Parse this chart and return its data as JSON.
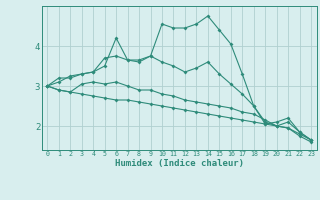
{
  "x": [
    0,
    1,
    2,
    3,
    4,
    5,
    6,
    7,
    8,
    9,
    10,
    11,
    12,
    13,
    14,
    15,
    16,
    17,
    18,
    19,
    20,
    21,
    22,
    23
  ],
  "line1": [
    3.0,
    3.2,
    3.2,
    3.3,
    3.35,
    3.7,
    3.75,
    3.65,
    3.65,
    3.75,
    4.55,
    4.45,
    4.45,
    4.55,
    4.75,
    4.4,
    4.05,
    3.3,
    2.5,
    2.05,
    2.1,
    2.2,
    1.85,
    1.65
  ],
  "line2": [
    3.0,
    3.1,
    3.25,
    3.3,
    3.35,
    3.5,
    4.2,
    3.65,
    3.6,
    3.75,
    3.6,
    3.5,
    3.35,
    3.45,
    3.6,
    3.3,
    3.05,
    2.8,
    2.5,
    2.1,
    2.0,
    2.1,
    1.85,
    1.65
  ],
  "line3": [
    3.0,
    2.9,
    2.85,
    3.05,
    3.1,
    3.05,
    3.1,
    3.0,
    2.9,
    2.9,
    2.8,
    2.75,
    2.65,
    2.6,
    2.55,
    2.5,
    2.45,
    2.35,
    2.3,
    2.15,
    2.0,
    1.95,
    1.75,
    1.6
  ],
  "line4": [
    3.0,
    2.9,
    2.85,
    2.8,
    2.75,
    2.7,
    2.65,
    2.65,
    2.6,
    2.55,
    2.5,
    2.45,
    2.4,
    2.35,
    2.3,
    2.25,
    2.2,
    2.15,
    2.1,
    2.05,
    2.0,
    1.95,
    1.8,
    1.65
  ],
  "line_color": "#2e8b7a",
  "bg_color": "#d8eeee",
  "grid_color": "#b0d0d0",
  "xlabel": "Humidex (Indice chaleur)",
  "yticks": [
    2,
    3,
    4
  ],
  "xlim": [
    -0.5,
    23.5
  ],
  "ylim": [
    1.4,
    5.0
  ]
}
